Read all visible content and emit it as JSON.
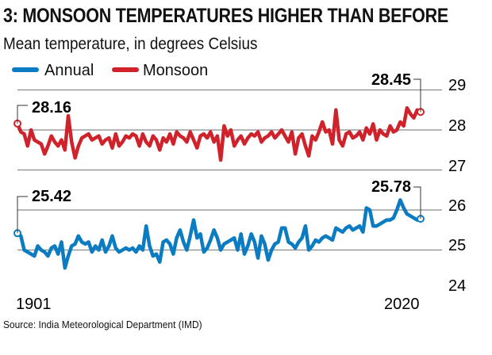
{
  "chart_data": {
    "type": "line",
    "title": "3: MONSOON TEMPERATURES HIGHER THAN BEFORE",
    "subtitle": "Mean temperature, in degrees Celsius",
    "source": "Source: India Meteorological Department (IMD)",
    "x_start": 1901,
    "x_end": 2020,
    "x_tick_labels": [
      "1901",
      "2020"
    ],
    "y_ticks": [
      "29",
      "28",
      "27",
      "26",
      "25",
      "24"
    ],
    "ylim": [
      24,
      29
    ],
    "grid": true,
    "legend": {
      "placement": "top-left",
      "entries": [
        "Annual",
        "Monsoon"
      ]
    },
    "colors": {
      "Annual": "#0b7cc1",
      "Monsoon": "#d0222a"
    },
    "annotations": {
      "monsoon_first": "28.16",
      "monsoon_last": "28.45",
      "annual_first": "25.42",
      "annual_last": "25.78"
    },
    "series": [
      {
        "name": "Monsoon",
        "values": [
          28.16,
          27.95,
          27.9,
          27.6,
          28.0,
          27.75,
          27.7,
          27.65,
          27.4,
          27.6,
          27.85,
          27.7,
          27.6,
          27.75,
          27.5,
          28.35,
          27.7,
          27.3,
          27.6,
          27.8,
          27.85,
          27.9,
          27.75,
          27.8,
          27.85,
          27.65,
          27.75,
          27.8,
          27.55,
          27.9,
          27.6,
          27.7,
          27.85,
          27.8,
          27.9,
          27.85,
          27.6,
          27.9,
          27.7,
          27.6,
          27.85,
          27.75,
          27.5,
          27.8,
          27.7,
          27.9,
          27.65,
          27.95,
          27.85,
          27.8,
          27.7,
          27.95,
          27.75,
          27.55,
          27.85,
          27.9,
          27.8,
          27.95,
          27.7,
          27.85,
          27.25,
          28.1,
          27.85,
          28.0,
          27.6,
          27.75,
          27.85,
          27.65,
          27.8,
          27.9,
          27.85,
          27.95,
          27.7,
          27.8,
          27.85,
          27.95,
          27.8,
          27.9,
          28.0,
          27.85,
          27.7,
          27.95,
          27.4,
          27.8,
          27.9,
          27.6,
          27.35,
          27.85,
          27.75,
          27.95,
          28.2,
          27.95,
          28.0,
          27.65,
          28.5,
          27.75,
          27.6,
          27.9,
          27.95,
          27.8,
          27.85,
          27.95,
          27.75,
          28.05,
          27.9,
          28.15,
          27.75,
          28.0,
          27.9,
          27.85,
          28.1,
          27.95,
          28.0,
          28.2,
          28.1,
          28.55,
          28.4,
          28.3,
          28.5,
          28.45
        ]
      },
      {
        "name": "Annual",
        "values": [
          25.42,
          25.35,
          25.0,
          24.95,
          24.9,
          24.85,
          25.1,
          25.0,
          24.95,
          24.85,
          25.05,
          25.1,
          24.9,
          25.2,
          24.55,
          24.85,
          25.1,
          25.15,
          25.35,
          25.2,
          25.15,
          25.2,
          24.95,
          25.1,
          25.0,
          25.25,
          24.95,
          25.1,
          25.35,
          25.05,
          24.95,
          25.0,
          25.05,
          25.0,
          25.05,
          24.95,
          25.1,
          25.0,
          25.6,
          25.1,
          24.85,
          24.9,
          24.7,
          25.2,
          25.25,
          25.15,
          24.9,
          25.3,
          25.5,
          25.2,
          25.0,
          25.35,
          25.75,
          25.3,
          25.4,
          24.95,
          25.05,
          25.25,
          25.5,
          25.3,
          25.0,
          25.15,
          25.2,
          25.25,
          25.3,
          25.0,
          25.4,
          24.9,
          25.1,
          25.4,
          25.2,
          24.8,
          25.35,
          25.15,
          24.75,
          25.0,
          25.15,
          25.2,
          25.55,
          25.55,
          25.2,
          25.15,
          25.05,
          25.2,
          25.3,
          25.6,
          25.0,
          25.1,
          25.25,
          25.2,
          25.3,
          25.35,
          25.3,
          25.25,
          25.55,
          25.5,
          25.45,
          25.55,
          25.6,
          25.5,
          25.55,
          25.6,
          25.45,
          26.05,
          26.0,
          25.6,
          25.6,
          25.65,
          25.7,
          25.75,
          25.75,
          25.8,
          26.0,
          26.25,
          26.05,
          25.9,
          25.85,
          25.8,
          25.75,
          25.78
        ]
      }
    ]
  }
}
